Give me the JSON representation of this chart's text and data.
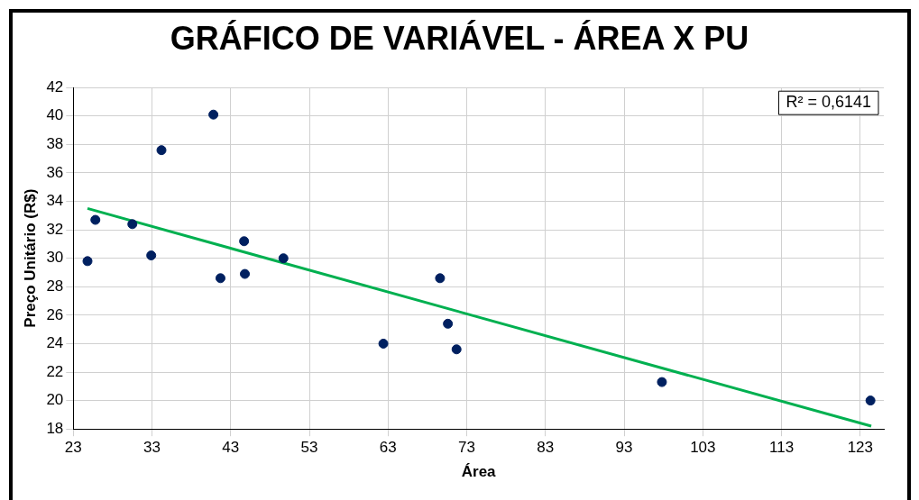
{
  "chart_data": {
    "type": "scatter",
    "title": "GRÁFICO DE VARIÁVEL - ÁREA X PU",
    "xlabel": "Área",
    "ylabel": "Preço Unitário (R$)",
    "x": [
      24.8,
      25.8,
      30.5,
      32.9,
      34.2,
      40.8,
      41.7,
      44.7,
      44.8,
      49.7,
      62.4,
      69.6,
      70.6,
      71.7,
      97.8,
      124.3
    ],
    "series": [
      {
        "color": "#002060",
        "values": [
          29.8,
          32.7,
          32.4,
          30.2,
          37.6,
          40.1,
          28.6,
          31.2,
          28.9,
          30.0,
          24.0,
          28.6,
          25.4,
          23.6,
          21.3,
          20.0
        ]
      },
      {
        "type": "line",
        "color": "#00b050",
        "x": [
          24.8,
          124.4
        ],
        "values": [
          33.5,
          18.2
        ],
        "marker": "none"
      }
    ],
    "xlim": [
      23,
      126
    ],
    "xticks": [
      23,
      33,
      43,
      53,
      63,
      73,
      83,
      93,
      103,
      113,
      123
    ],
    "ylim": [
      18,
      42
    ],
    "yticks": [
      18,
      20,
      22,
      24,
      26,
      28,
      30,
      32,
      34,
      36,
      38,
      40,
      42
    ],
    "grid": true,
    "marker": "circle",
    "annotations": [
      "R² = 0,6141"
    ]
  }
}
